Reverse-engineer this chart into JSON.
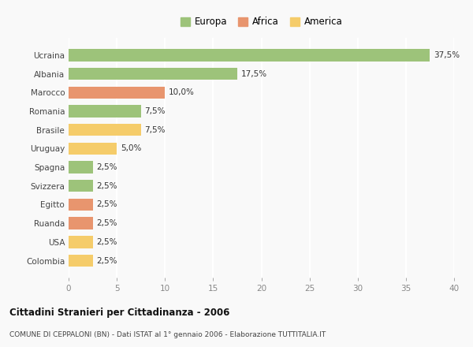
{
  "categories": [
    "Colombia",
    "USA",
    "Ruanda",
    "Egitto",
    "Svizzera",
    "Spagna",
    "Uruguay",
    "Brasile",
    "Romania",
    "Marocco",
    "Albania",
    "Ucraina"
  ],
  "values": [
    2.5,
    2.5,
    2.5,
    2.5,
    2.5,
    2.5,
    5.0,
    7.5,
    7.5,
    10.0,
    17.5,
    37.5
  ],
  "colors": [
    "#f5cc6a",
    "#f5cc6a",
    "#e8956e",
    "#e8956e",
    "#9dc37a",
    "#9dc37a",
    "#f5cc6a",
    "#f5cc6a",
    "#9dc37a",
    "#e8956e",
    "#9dc37a",
    "#9dc37a"
  ],
  "labels": [
    "2,5%",
    "2,5%",
    "2,5%",
    "2,5%",
    "2,5%",
    "2,5%",
    "5,0%",
    "7,5%",
    "7,5%",
    "10,0%",
    "17,5%",
    "37,5%"
  ],
  "legend": [
    {
      "label": "Europa",
      "color": "#9dc37a"
    },
    {
      "label": "Africa",
      "color": "#e8956e"
    },
    {
      "label": "America",
      "color": "#f5cc6a"
    }
  ],
  "title": "Cittadini Stranieri per Cittadinanza - 2006",
  "subtitle": "COMUNE DI CEPPALONI (BN) - Dati ISTAT al 1° gennaio 2006 - Elaborazione TUTTITALIA.IT",
  "xlim": [
    0,
    40
  ],
  "xticks": [
    0,
    5,
    10,
    15,
    20,
    25,
    30,
    35,
    40
  ],
  "background_color": "#f9f9f9",
  "grid_color": "#ffffff"
}
